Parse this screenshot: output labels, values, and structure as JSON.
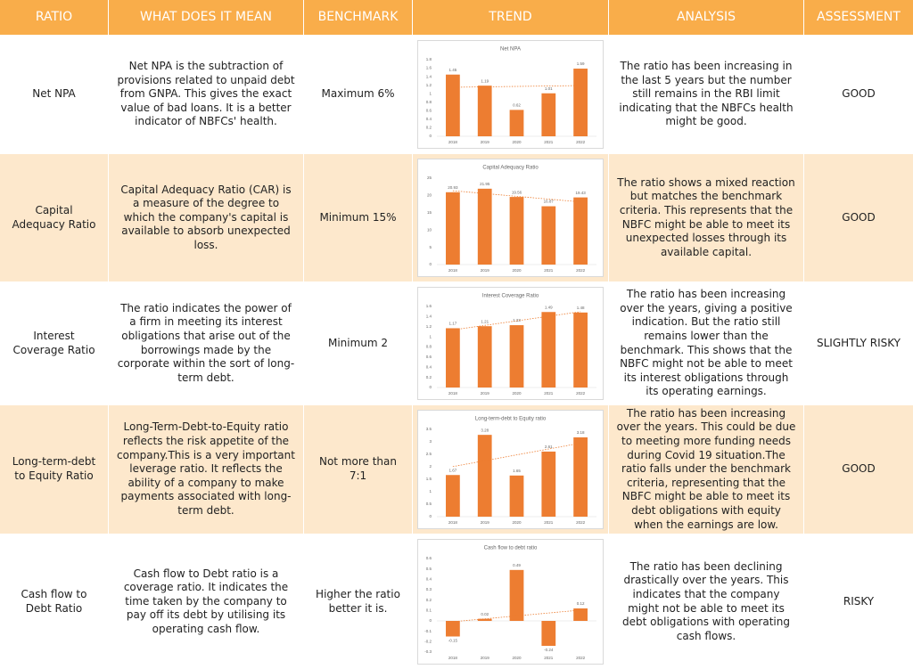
{
  "header": {
    "columns": [
      "RATIO",
      "WHAT DOES IT MEAN",
      "BENCHMARK",
      "TREND",
      "ANALYSIS",
      "ASSESSMENT"
    ]
  },
  "table": {
    "rows": [
      {
        "ratio": "Net NPA",
        "meaning": "Net NPA is the subtraction of provisions related to unpaid debt from GNPA. This gives the exact value of bad loans. It is a better indicator of NBFCs' health.",
        "benchmark": "Maximum 6%",
        "analysis": "The ratio has been increasing in the last 5 years but the number still remains in the RBI limit indicating that the NBFCs health might be good.",
        "assessment": "GOOD"
      },
      {
        "ratio": "Capital Adequacy Ratio",
        "meaning": "Capital Adequacy Ratio (CAR) is a measure of the degree to which the company's capital is available to absorb unexpected loss.",
        "benchmark": "Minimum 15%",
        "analysis": "The ratio shows a mixed reaction but matches the benchmark criteria. This represents that the NBFC might be able to meet its unexpected losses through its available capital.",
        "assessment": "GOOD"
      },
      {
        "ratio": "Interest Coverage Ratio",
        "meaning": "The ratio indicates the power of a firm in meeting its interest obligations that arise out of the borrowings made by the corporate within the sort of long-term debt.",
        "benchmark": "Minimum 2",
        "analysis": "The ratio has been increasing over the years, giving a positive indication. But the ratio still remains lower than the benchmark. This shows that the NBFC might not be able to meet its interest obligations through its operating earnings.",
        "assessment": "SLIGHTLY RISKY"
      },
      {
        "ratio": "Long-term-debt to Equity Ratio",
        "meaning": "Long-Term-Debt-to-Equity ratio reflects the risk appetite of the company.This is a very important leverage ratio. It reflects the ability of a company to make payments associated with long-term debt.",
        "benchmark": "Not more than 7:1",
        "analysis": "The ratio has been increasing over the years. This could be due to meeting more funding needs during Covid 19 situation.The ratio falls under the benchmark criteria, representing that the NBFC might be able to meet its debt obligations with equity when the earnings are low.",
        "assessment": "GOOD"
      },
      {
        "ratio": "Cash flow to Debt Ratio",
        "meaning": "Cash flow to Debt ratio is a coverage ratio. It indicates the time taken by the company to pay off its debt by utilising its operating cash flow.",
        "benchmark": "Higher the ratio better it is.",
        "analysis": "The ratio has been declining drastically over the years. This indicates that the company might not be able to meet its debt obligations with operating cash flows.",
        "assessment": "RISKY"
      }
    ]
  },
  "chart_data": [
    {
      "type": "bar",
      "title": "Net NPA",
      "categories": [
        "2018",
        "2019",
        "2020",
        "2021",
        "2022"
      ],
      "values": [
        1.45,
        1.19,
        0.62,
        1.01,
        1.59
      ],
      "color": "#ed7d31",
      "ylim": [
        0,
        1.8
      ],
      "yticks": [
        0,
        0.2,
        0.4,
        0.6,
        0.8,
        1,
        1.2,
        1.4,
        1.6,
        1.8
      ],
      "trendline": true
    },
    {
      "type": "bar",
      "title": "Capital Adequacy Ratio",
      "categories": [
        "2018",
        "2019",
        "2020",
        "2021",
        "2022"
      ],
      "values": [
        20.93,
        21.95,
        19.56,
        16.87,
        19.43
      ],
      "color": "#ed7d31",
      "ylim": [
        0,
        25
      ],
      "yticks": [
        0,
        5,
        10,
        15,
        20,
        25
      ],
      "trendline": true
    },
    {
      "type": "bar",
      "title": "Interest Coverage Ratio",
      "categories": [
        "2018",
        "2019",
        "2020",
        "2021",
        "2022"
      ],
      "values": [
        1.17,
        1.21,
        1.23,
        1.49,
        1.48
      ],
      "color": "#ed7d31",
      "ylim": [
        0,
        1.6
      ],
      "yticks": [
        0,
        0.2,
        0.4,
        0.6,
        0.8,
        1,
        1.2,
        1.4,
        1.6
      ],
      "trendline": true
    },
    {
      "type": "bar",
      "title": "Long-term-debt to Equity ratio",
      "categories": [
        "2018",
        "2019",
        "2020",
        "2021",
        "2022"
      ],
      "values": [
        1.67,
        3.28,
        1.65,
        2.61,
        3.18
      ],
      "color": "#ed7d31",
      "ylim": [
        0,
        3.5
      ],
      "yticks": [
        0,
        0.5,
        1,
        1.5,
        2,
        2.5,
        3,
        3.5
      ],
      "trendline": true
    },
    {
      "type": "bar",
      "title": "Cash flow to debt ratio",
      "categories": [
        "2018",
        "2019",
        "2020",
        "2021",
        "2022"
      ],
      "values": [
        -0.15,
        0.02,
        0.49,
        -0.24,
        0.12
      ],
      "color": "#ed7d31",
      "ylim": [
        -0.3,
        0.6
      ],
      "yticks": [
        -0.3,
        -0.2,
        -0.1,
        0,
        0.1,
        0.2,
        0.3,
        0.4,
        0.5,
        0.6
      ],
      "trendline": true
    }
  ]
}
